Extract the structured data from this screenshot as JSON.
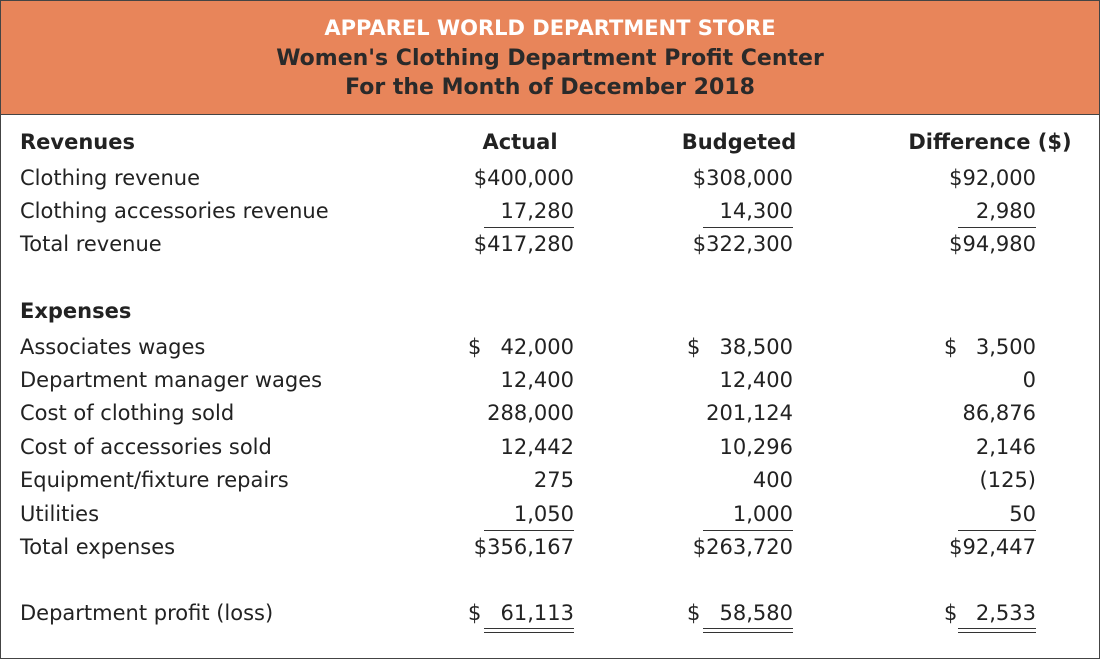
{
  "header": {
    "title": "APPAREL WORLD DEPARTMENT STORE",
    "subtitle": "Women's Clothing Department Profit Center",
    "period": "For the Month of December 2018"
  },
  "table": {
    "header": [
      "Revenues",
      "Actual",
      "Budgeted",
      "Difference ($)"
    ],
    "rows": [
      [
        "Clothing revenue",
        "$400,000",
        "$308,000",
        "$92,000"
      ],
      [
        "Clothing accessories revenue",
        "17,280",
        "14,300",
        "2,980"
      ],
      [
        "Total revenue",
        "$417,280",
        "$322,300",
        "$94,980"
      ],
      [
        "Expenses"
      ],
      [
        "Associates wages",
        {
          "currency": "$",
          "amount": "42,000"
        },
        {
          "currency": "$",
          "amount": "38,500"
        },
        {
          "currency": "$",
          "amount": "3,500"
        }
      ],
      [
        "Department manager wages",
        "12,400",
        "12,400",
        "0"
      ],
      [
        "Cost of clothing sold",
        "288,000",
        "201,124",
        "86,876"
      ],
      [
        "Cost of accessories sold",
        "12,442",
        "10,296",
        "2,146"
      ],
      [
        "Equipment/fixture repairs",
        "275",
        "400",
        "(125)"
      ],
      [
        "Utilities",
        "1,050",
        "1,000",
        "50"
      ],
      [
        "Total expenses",
        "$356,167",
        "$263,720",
        "$92,447"
      ],
      [
        "Department profit (loss)",
        {
          "currency": "$",
          "amount": "61,113"
        },
        {
          "currency": "$",
          "amount": "58,580"
        },
        {
          "currency": "$",
          "amount": "2,533"
        }
      ]
    ]
  }
}
